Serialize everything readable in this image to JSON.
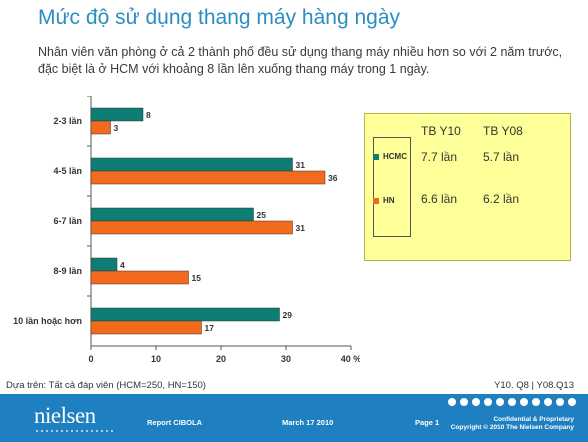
{
  "title": "Mức độ sử dụng thang máy hàng ngày",
  "subtitle": "Nhân viên văn phòng ở cả 2 thành phố đều sử dụng thang máy nhiều hơn so với 2 năm trước, đặc biệt là ở HCM với khoảng 8 lần lên xuống thang máy trong 1 ngày.",
  "chart_data": {
    "type": "bar",
    "orientation": "horizontal",
    "categories": [
      "2-3 lần",
      "4-5 lần",
      "6-7 lần",
      "8-9 lần",
      "10 lần hoặc hơn"
    ],
    "series": [
      {
        "name": "HCMC",
        "values": [
          8,
          31,
          25,
          4,
          29
        ],
        "color": "#0e7d74"
      },
      {
        "name": "HN",
        "values": [
          3,
          36,
          31,
          15,
          17
        ],
        "color": "#f26b1d"
      }
    ],
    "xlim": [
      0,
      40
    ],
    "xticks": [
      "0",
      "10",
      "20",
      "30",
      "40 %"
    ],
    "grid": false,
    "legend_placement": "right"
  },
  "legend_table": {
    "col1": "TB Y10",
    "col2": "TB Y08",
    "rows": [
      {
        "name": "HCMC",
        "v10": "7.7 lần",
        "v08": "5.7 lần",
        "color": "#0e7d74"
      },
      {
        "name": "HN",
        "v10": "6.6 lần",
        "v08": "6.2 lần",
        "color": "#f26b1d"
      }
    ]
  },
  "basis": "Dựa trên: Tất cả đáp viên (HCM=250, HN=150)",
  "ref": "Y10. Q8 | Y08.Q13",
  "footer": {
    "brand": "nielsen",
    "report": "Report CIBOLA",
    "date": "March 17 2010",
    "page": "Page 1",
    "confidential": "Confidential & Proprietary",
    "copyright": "Copyright © 2010 The Nielsen Company"
  }
}
